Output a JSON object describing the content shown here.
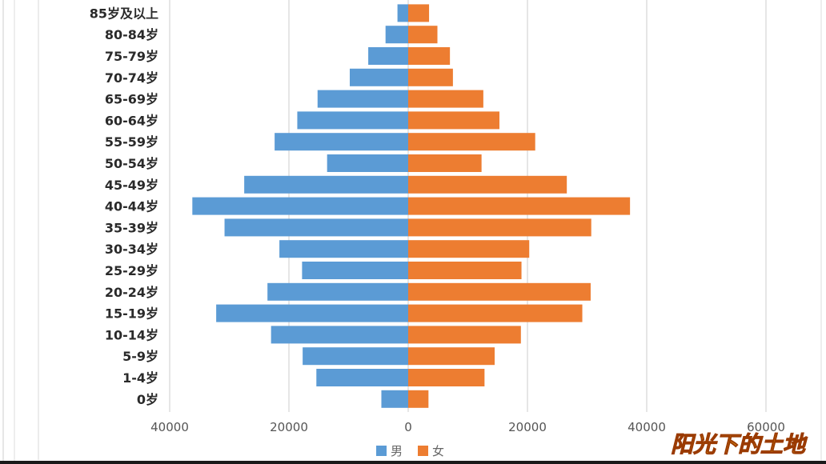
{
  "chart_data": {
    "type": "bar",
    "orientation": "horizontal",
    "categories": [
      "85岁及以上",
      "80-84岁",
      "75-79岁",
      "70-74岁",
      "65-69岁",
      "60-64岁",
      "55-59岁",
      "50-54岁",
      "45-49岁",
      "40-44岁",
      "35-39岁",
      "30-34岁",
      "25-29岁",
      "20-24岁",
      "15-19岁",
      "10-14岁",
      "5-9岁",
      "1-4岁",
      "0岁"
    ],
    "series": [
      {
        "name": "男",
        "color": "#5b9bd5",
        "values": [
          -1800,
          -3800,
          -6700,
          -9800,
          -15200,
          -18600,
          -22400,
          -13600,
          -27500,
          -36200,
          -30800,
          -21600,
          -17800,
          -23600,
          -32200,
          -23000,
          -17700,
          -15400,
          -4500
        ]
      },
      {
        "name": "女",
        "color": "#ed7d31",
        "values": [
          3500,
          4900,
          7000,
          7500,
          12600,
          15300,
          21300,
          12300,
          26600,
          37200,
          30700,
          20300,
          19000,
          30600,
          29200,
          18900,
          14500,
          12800,
          3400
        ]
      }
    ],
    "xticks": [
      "40000",
      "20000",
      "0",
      "20000",
      "40000",
      "60000"
    ],
    "xlim": [
      -40000,
      60000
    ],
    "grid": true,
    "legend": "bottom"
  },
  "watermark": "阳光下的土地"
}
